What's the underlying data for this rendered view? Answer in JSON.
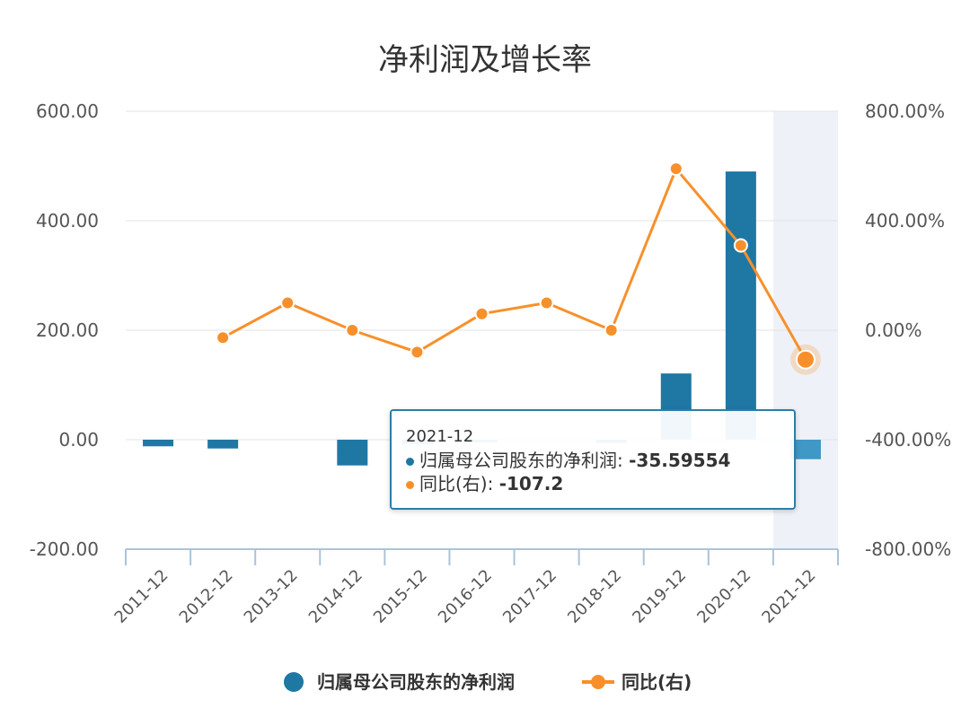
{
  "chart_data": {
    "type": "bar",
    "title": "净利润及增长率",
    "categories": [
      "2011-12",
      "2012-12",
      "2013-12",
      "2014-12",
      "2015-12",
      "2016-12",
      "2017-12",
      "2018-12",
      "2019-12",
      "2020-12",
      "2021-12"
    ],
    "series": [
      {
        "name": "归属母公司股东的净利润",
        "type": "bar",
        "axis": "left",
        "color": "#1f77a3",
        "values": [
          -12,
          -16,
          null,
          -47,
          -8,
          -5,
          null,
          -6,
          121,
          490,
          -35.59554
        ]
      },
      {
        "name": "同比(右)",
        "type": "line",
        "axis": "right",
        "color": "#f7902a",
        "values": [
          null,
          -27,
          100,
          0,
          -80,
          60,
          100,
          0,
          590,
          310,
          -107.2
        ]
      }
    ],
    "y_left": {
      "ticks": [
        "600.00",
        "400.00",
        "200.00",
        "0.00",
        "-200.00"
      ],
      "range": [
        -200,
        600
      ]
    },
    "y_right": {
      "ticks": [
        "800.00%",
        "400.00%",
        "0.00%",
        "-400.00%",
        "-800.00%"
      ],
      "range": [
        -800,
        800
      ]
    },
    "highlight_category": "2021-12",
    "grid": true,
    "legend_position": "bottom",
    "tooltip": {
      "header": "2021-12",
      "rows": [
        {
          "label": "归属母公司股东的净利润:",
          "value": "-35.59554",
          "color": "#1f77a3"
        },
        {
          "label": "同比(右):",
          "value": "-107.2",
          "color": "#f7902a"
        }
      ]
    }
  }
}
